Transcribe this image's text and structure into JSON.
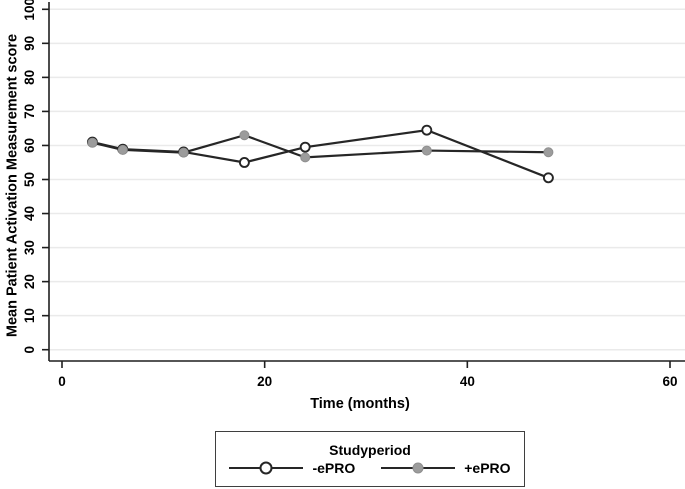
{
  "chart_data": {
    "type": "line",
    "title": "",
    "xlabel": "Time (months)",
    "ylabel": "Mean Patient Activation Measurement score",
    "x": [
      3,
      6,
      12,
      18,
      24,
      36,
      48
    ],
    "series": [
      {
        "name": "-ePRO",
        "marker": "open-circle",
        "line_color": "#262626",
        "marker_fill": "#ffffff",
        "marker_stroke": "#262626",
        "values": [
          61,
          58.9,
          58.1,
          55,
          59.5,
          64.5,
          50.5
        ]
      },
      {
        "name": "+ePRO",
        "marker": "filled-circle",
        "line_color": "#262626",
        "marker_fill": "#9c9c9c",
        "marker_stroke": "#8f8f8f",
        "values": [
          60.8,
          58.7,
          57.9,
          63,
          56.5,
          58.5,
          58
        ]
      }
    ],
    "xlim": [
      0,
      61.5
    ],
    "ylim": [
      0,
      100
    ],
    "x_ticks": [
      0,
      20,
      40,
      60
    ],
    "y_ticks": [
      0,
      10,
      20,
      30,
      40,
      50,
      60,
      70,
      80,
      90,
      100
    ],
    "grid": "horizontal",
    "grid_color": "#eaeaea",
    "axis_color": "#1f1f1f",
    "legend_position": "bottom-outside"
  },
  "legend": {
    "title": "Studyperiod",
    "entries": [
      {
        "label": "-ePRO",
        "marker": "open-circle"
      },
      {
        "label": "+ePRO",
        "marker": "filled-circle"
      }
    ]
  }
}
